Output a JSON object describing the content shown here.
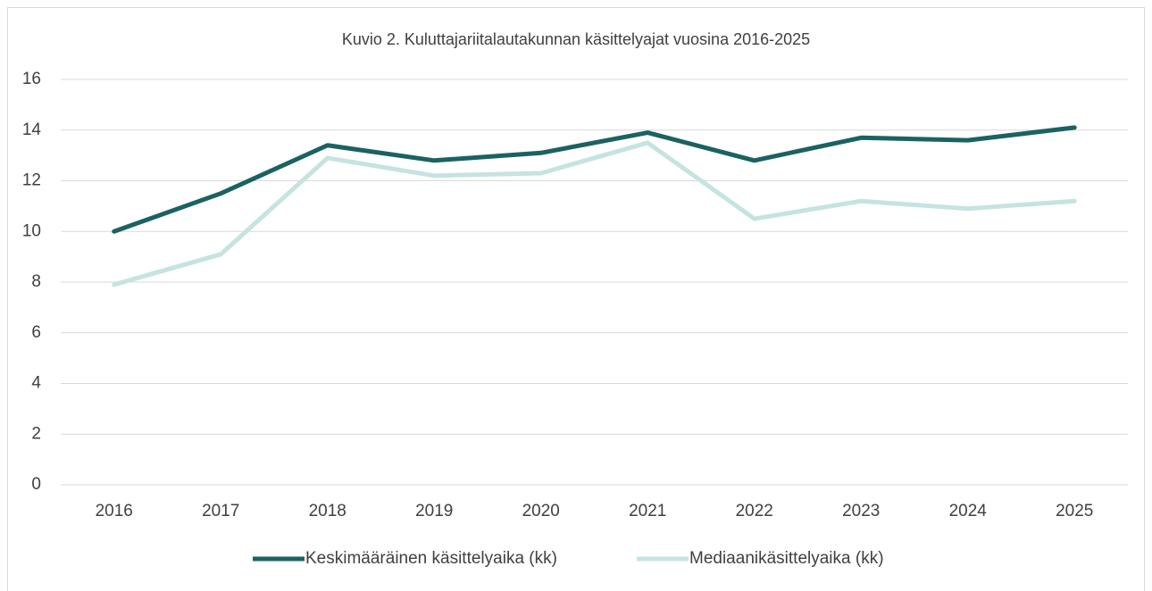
{
  "chart_data": {
    "type": "line",
    "title": "Kuvio 2. Kuluttajariitalautakunnan käsittelyajat vuosina 2016-2025",
    "categories": [
      "2016",
      "2017",
      "2018",
      "2019",
      "2020",
      "2021",
      "2022",
      "2023",
      "2024",
      "2025"
    ],
    "series": [
      {
        "name": "Keskimääräinen käsittelyaika (kk)",
        "color": "#1b6262",
        "values": [
          10.0,
          11.5,
          13.4,
          12.8,
          13.1,
          13.9,
          12.8,
          13.7,
          13.6,
          14.1
        ]
      },
      {
        "name": "Mediaanikäsittelyaika (kk)",
        "color": "#c6e4df",
        "values": [
          7.9,
          9.1,
          12.9,
          12.2,
          12.3,
          13.5,
          10.5,
          11.2,
          10.9,
          11.2
        ]
      }
    ],
    "ylim": [
      0,
      16
    ],
    "yticks": [
      0,
      2,
      4,
      6,
      8,
      10,
      12,
      14,
      16
    ],
    "grid": true,
    "legend": "bottom"
  }
}
